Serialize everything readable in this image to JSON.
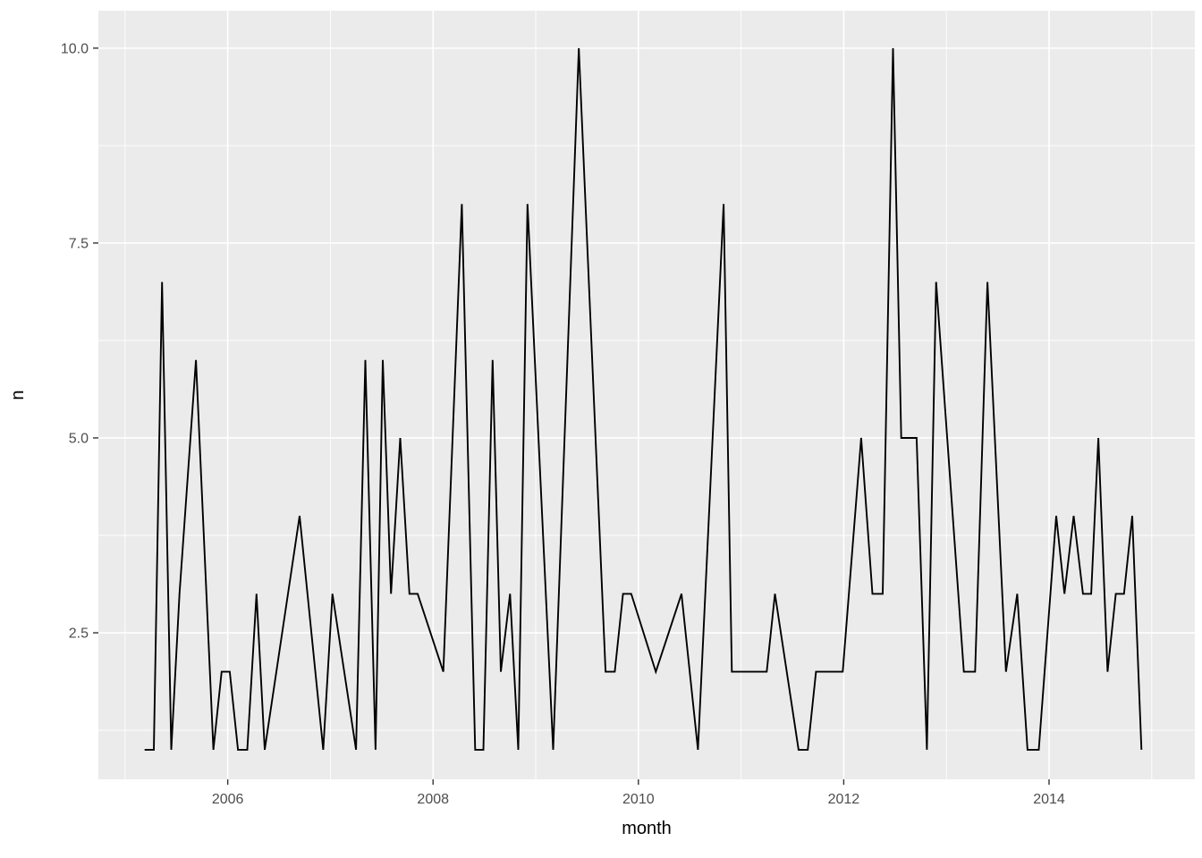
{
  "figure": {
    "background_color": "#FFFFFF"
  },
  "chart_data": {
    "type": "line",
    "title": "",
    "xlabel": "month",
    "ylabel": "n",
    "legend": false,
    "grid": true,
    "panel_bg_color": "#EBEBEB",
    "grid_color": "#FFFFFF",
    "line_color": "#000000",
    "tick_mark_color": "#333333",
    "tick_label_color": "#4D4D4D",
    "axis_title_color": "#000000",
    "xlim": [
      2004.74,
      2015.42
    ],
    "ylim": [
      0.62,
      10.48
    ],
    "x_ticks": {
      "values": [
        2006,
        2008,
        2010,
        2012,
        2014
      ],
      "labels": [
        "2006",
        "2008",
        "2010",
        "2012",
        "2014"
      ]
    },
    "y_ticks": {
      "values": [
        2.5,
        5.0,
        7.5,
        10.0
      ],
      "labels": [
        "2.5",
        "5.0",
        "7.5",
        "10.0"
      ]
    },
    "x_minor_breaks": [
      2005,
      2007,
      2009,
      2011,
      2013,
      2015
    ],
    "y_minor_breaks": [
      1.25,
      3.75,
      6.25,
      8.75
    ],
    "series": [
      {
        "name": "n",
        "x": [
          2005.19,
          2005.28,
          2005.36,
          2005.45,
          2005.53,
          2005.69,
          2005.86,
          2005.94,
          2006.02,
          2006.1,
          2006.19,
          2006.28,
          2006.36,
          2006.7,
          2006.93,
          2007.02,
          2007.25,
          2007.34,
          2007.44,
          2007.51,
          2007.59,
          2007.68,
          2007.77,
          2007.85,
          2008.1,
          2008.28,
          2008.41,
          2008.49,
          2008.58,
          2008.66,
          2008.75,
          2008.83,
          2008.92,
          2009.17,
          2009.42,
          2009.68,
          2009.77,
          2009.85,
          2009.93,
          2010.17,
          2010.42,
          2010.58,
          2010.83,
          2010.91,
          2011.02,
          2011.13,
          2011.25,
          2011.33,
          2011.56,
          2011.65,
          2011.73,
          2011.86,
          2011.99,
          2012.17,
          2012.28,
          2012.38,
          2012.48,
          2012.56,
          2012.71,
          2012.81,
          2012.9,
          2013.17,
          2013.28,
          2013.4,
          2013.58,
          2013.69,
          2013.79,
          2013.9,
          2014.07,
          2014.15,
          2014.24,
          2014.33,
          2014.41,
          2014.48,
          2014.57,
          2014.65,
          2014.73,
          2014.81,
          2014.9
        ],
        "y": [
          1,
          1,
          7,
          1,
          3,
          6,
          1,
          2,
          2,
          1,
          1,
          3,
          1,
          4,
          1,
          3,
          1,
          6,
          1,
          6,
          3,
          5,
          3,
          3,
          2,
          8,
          1,
          1,
          6,
          2,
          3,
          1,
          8,
          1,
          10,
          2,
          2,
          3,
          3,
          2,
          3,
          1,
          8,
          2,
          2,
          2,
          2,
          3,
          1,
          1,
          2,
          2,
          2,
          5,
          3,
          3,
          10,
          5,
          5,
          1,
          7,
          2,
          2,
          7,
          2,
          3,
          1,
          1,
          4,
          3,
          4,
          3,
          3,
          5,
          2,
          3,
          3,
          4,
          1
        ]
      }
    ]
  }
}
